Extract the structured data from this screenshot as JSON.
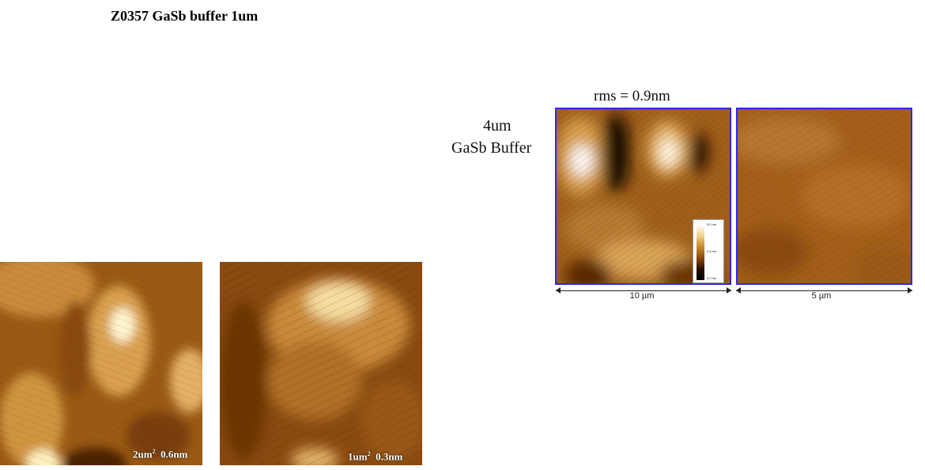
{
  "title": "Z0357 GaSb buffer  1um",
  "left_panel": {
    "img1_caption_area": "2um",
    "img1_caption_exp": "2",
    "img1_caption_rms": "0.6nm",
    "img2_caption_area": "1um",
    "img2_caption_exp": "2",
    "img2_caption_rms": "0.3nm"
  },
  "right_panel": {
    "rms_label": "rms = 0.9nm",
    "sample_line1": "4um",
    "sample_line2": "GaSb Buffer",
    "scale1": "10 µm",
    "scale2": "5 µm",
    "colorbar_ticks": [
      "5.0 nm",
      "2.5 nm",
      "0.0 nm"
    ]
  },
  "colors": {
    "frame": "#2b2bd9",
    "afm_dark": "#5a2c00",
    "afm_mid": "#b56f1c",
    "afm_light": "#f7e7b5"
  }
}
